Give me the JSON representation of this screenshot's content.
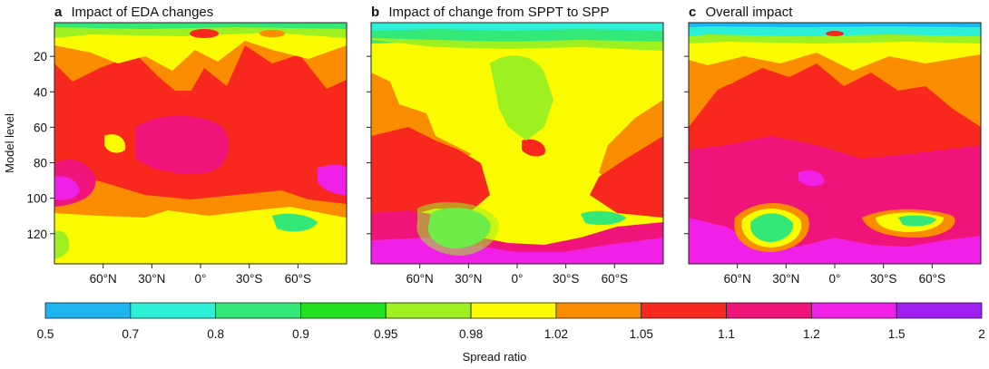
{
  "figure": {
    "ylabel": "Model level",
    "colorbar_label": "Spread ratio"
  },
  "chart_data": [
    {
      "type": "heatmap",
      "panel_letter": "a",
      "title": "Impact of EDA changes",
      "xlabel": "",
      "ylabel": "Model level",
      "x_ticks": [
        "60°N",
        "30°N",
        "0°",
        "30°S",
        "60°S"
      ],
      "x_tick_values": [
        60,
        30,
        0,
        -30,
        -60
      ],
      "xlim": [
        90,
        -90
      ],
      "y_ticks": [
        20,
        40,
        60,
        80,
        100,
        120
      ],
      "ylim": [
        1,
        137
      ],
      "grid": false
    },
    {
      "type": "heatmap",
      "panel_letter": "b",
      "title": "Impact of change from SPPT to SPP",
      "xlabel": "",
      "ylabel": "",
      "x_ticks": [
        "60°N",
        "30°N",
        "0°",
        "30°S",
        "60°S"
      ],
      "x_tick_values": [
        60,
        30,
        0,
        -30,
        -60
      ],
      "xlim": [
        90,
        -90
      ],
      "y_ticks": [
        20,
        40,
        60,
        80,
        100,
        120
      ],
      "ylim": [
        1,
        137
      ],
      "grid": false
    },
    {
      "type": "heatmap",
      "panel_letter": "c",
      "title": "Overall impact",
      "xlabel": "",
      "ylabel": "",
      "x_ticks": [
        "60°N",
        "30°N",
        "0°",
        "30°S",
        "60°S"
      ],
      "x_tick_values": [
        60,
        30,
        0,
        -30,
        -60
      ],
      "xlim": [
        90,
        -90
      ],
      "y_ticks": [
        20,
        40,
        60,
        80,
        100,
        120
      ],
      "ylim": [
        1,
        137
      ],
      "grid": false
    }
  ],
  "colorbar": {
    "label": "Spread ratio",
    "boundaries": [
      "0.5",
      "0.7",
      "0.8",
      "0.9",
      "0.95",
      "0.98",
      "1.02",
      "1.05",
      "1.1",
      "1.2",
      "1.5",
      "2"
    ],
    "colors": [
      "#1eb4f0",
      "#2cf0d8",
      "#34e878",
      "#22e020",
      "#9ef020",
      "#fbfb00",
      "#fa8c00",
      "#f8281e",
      "#f0147a",
      "#f020e6",
      "#a01ef0"
    ]
  }
}
